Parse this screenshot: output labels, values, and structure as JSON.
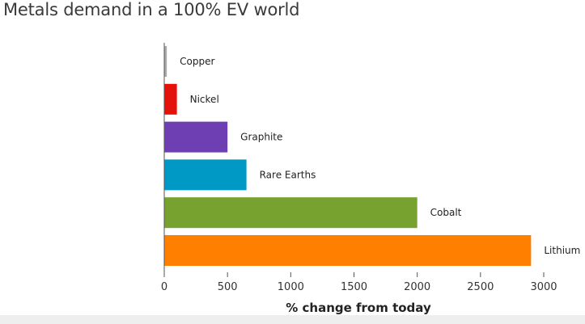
{
  "title": "Metals demand in a 100% EV world",
  "chart_data": {
    "type": "bar",
    "orientation": "horizontal",
    "title": "Metals demand in a 100% EV world",
    "xlabel": "% change from today",
    "ylabel": "",
    "xlim": [
      0,
      3000
    ],
    "xticks": [
      0,
      500,
      1000,
      1500,
      2000,
      2500,
      3000
    ],
    "categories": [
      "Copper",
      "Nickel",
      "Graphite",
      "Rare Earths",
      "Cobalt",
      "Lithium"
    ],
    "values": [
      20,
      100,
      500,
      650,
      2000,
      2900
    ],
    "colors": [
      "#aaaaaa",
      "#e3120b",
      "#6e3fb3",
      "#0099c6",
      "#78a22f",
      "#ff8000"
    ],
    "grid": false,
    "legend": "none"
  }
}
